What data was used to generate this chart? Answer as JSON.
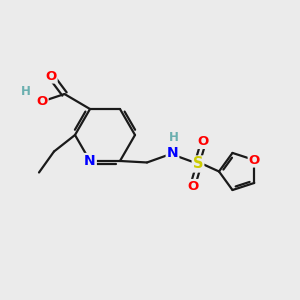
{
  "bg_color": "#ebebeb",
  "atom_colors": {
    "C": "#000000",
    "N": "#0000ff",
    "O": "#ff0000",
    "S": "#cccc00",
    "H": "#6aafaf"
  },
  "bond_color": "#1a1a1a",
  "bond_width": 1.6,
  "font_size": 9.5
}
